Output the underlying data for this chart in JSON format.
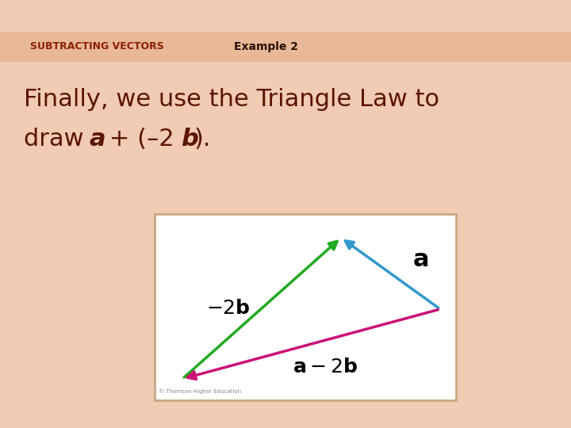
{
  "bg_color": "#f2cbb4",
  "header_bg": "#e8b898",
  "header_text": "SUBTRACTING VECTORS",
  "header_color": "#8B2000",
  "example_text": "Example 2",
  "example_color": "#2a1000",
  "body_color": "#5c1500",
  "diagram_bg": "#ffffff",
  "diagram_border": "#c8a882",
  "arrow_a_color": "#3399cc",
  "arrow_neg2b_color": "#22aa22",
  "arrow_result_color": "#cc1177",
  "copyright_text": "© Thomson Higher Education",
  "header_fontsize": 9,
  "example_fontsize": 10,
  "body_fontsize": 22
}
